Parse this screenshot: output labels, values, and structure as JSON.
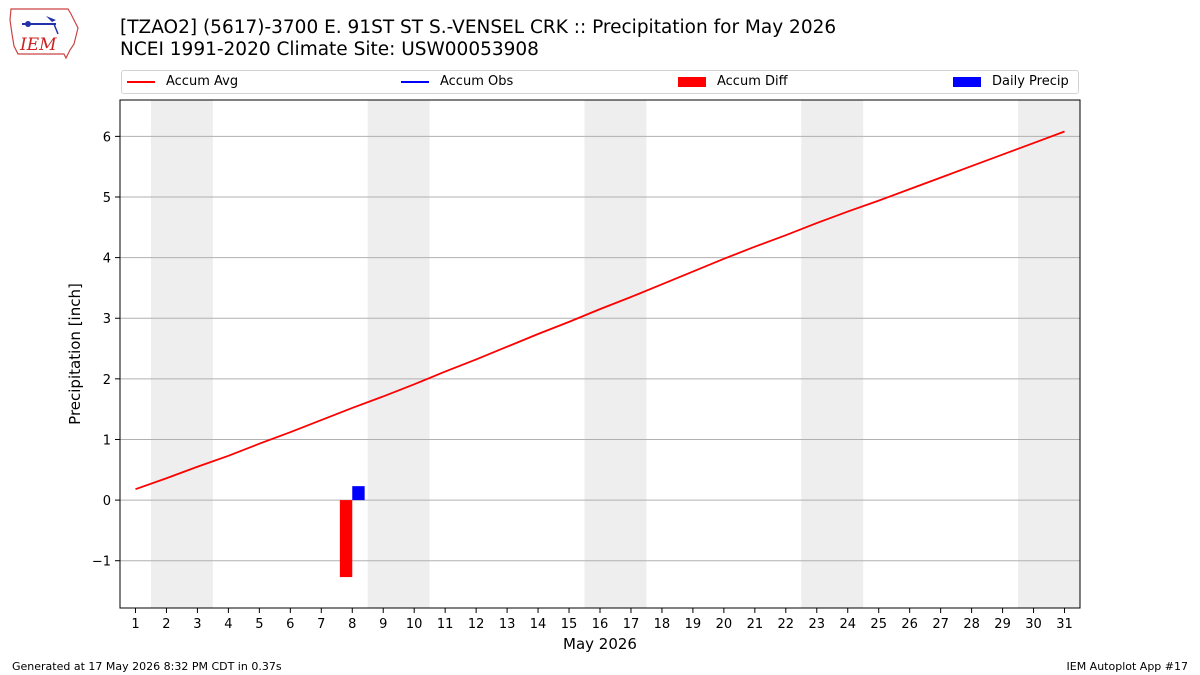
{
  "header": {
    "title_line1": "[TZAO2] (5617)-3700 E. 91ST ST S.-VENSEL CRK :: Precipitation for May 2026",
    "title_line2": "NCEI 1991-2020 Climate Site: USW00053908",
    "logo_text": "IEM"
  },
  "legend": {
    "items": [
      {
        "label": "Accum Avg",
        "kind": "line",
        "color": "#ff0000"
      },
      {
        "label": "Accum Obs",
        "kind": "line",
        "color": "#0000ff"
      },
      {
        "label": "Accum Diff",
        "kind": "box",
        "color": "#ff0000"
      },
      {
        "label": "Daily Precip",
        "kind": "box",
        "color": "#0000ff"
      }
    ],
    "placement": "top, above plot"
  },
  "footer": {
    "left": "Generated at 17 May 2026 8:32 PM CDT in 0.37s",
    "right": "IEM Autoplot App #17"
  },
  "chart_data": {
    "type": "line",
    "title": "[TZAO2] (5617)-3700 E. 91ST ST S.-VENSEL CRK :: Precipitation for May 2026",
    "subtitle": "NCEI 1991-2020 Climate Site: USW00053908",
    "xlabel": "May 2026",
    "ylabel": "Precipitation [inch]",
    "xlim": [
      0.5,
      31.5
    ],
    "ylim": [
      -1.78,
      6.6
    ],
    "x_ticks": [
      "1",
      "2",
      "3",
      "4",
      "5",
      "6",
      "7",
      "8",
      "9",
      "10",
      "11",
      "12",
      "13",
      "14",
      "15",
      "16",
      "17",
      "18",
      "19",
      "20",
      "21",
      "22",
      "23",
      "24",
      "25",
      "26",
      "27",
      "28",
      "29",
      "30",
      "31"
    ],
    "y_ticks": [
      -1,
      0,
      1,
      2,
      3,
      4,
      5,
      6
    ],
    "y_tick_labels": [
      "−1",
      "0",
      "1",
      "2",
      "3",
      "4",
      "5",
      "6"
    ],
    "grid": "horizontal",
    "weekend_shading": [
      [
        1.5,
        3.5
      ],
      [
        8.5,
        10.5
      ],
      [
        15.5,
        17.5
      ],
      [
        22.5,
        24.5
      ],
      [
        29.5,
        31.5
      ]
    ],
    "shading_color": "#eeeeee",
    "series": [
      {
        "name": "Accum Avg",
        "kind": "line",
        "color": "#ff0000",
        "x": [
          1,
          2,
          3,
          4,
          5,
          6,
          7,
          8,
          9,
          10,
          11,
          12,
          13,
          14,
          15,
          16,
          17,
          18,
          19,
          20,
          21,
          22,
          23,
          24,
          25,
          26,
          27,
          28,
          29,
          30,
          31
        ],
        "values": [
          0.18,
          0.36,
          0.55,
          0.73,
          0.93,
          1.12,
          1.32,
          1.52,
          1.71,
          1.91,
          2.12,
          2.32,
          2.53,
          2.74,
          2.94,
          3.15,
          3.35,
          3.56,
          3.77,
          3.98,
          4.18,
          4.37,
          4.57,
          4.76,
          4.94,
          5.13,
          5.32,
          5.51,
          5.7,
          5.89,
          6.08
        ]
      },
      {
        "name": "Accum Diff",
        "kind": "bar",
        "color": "#ff0000",
        "x": [
          8
        ],
        "values": [
          -1.27
        ],
        "offset": -0.2
      },
      {
        "name": "Daily Precip",
        "kind": "bar",
        "color": "#0000ff",
        "x": [
          8
        ],
        "values": [
          0.23
        ],
        "offset": 0.2
      }
    ]
  }
}
